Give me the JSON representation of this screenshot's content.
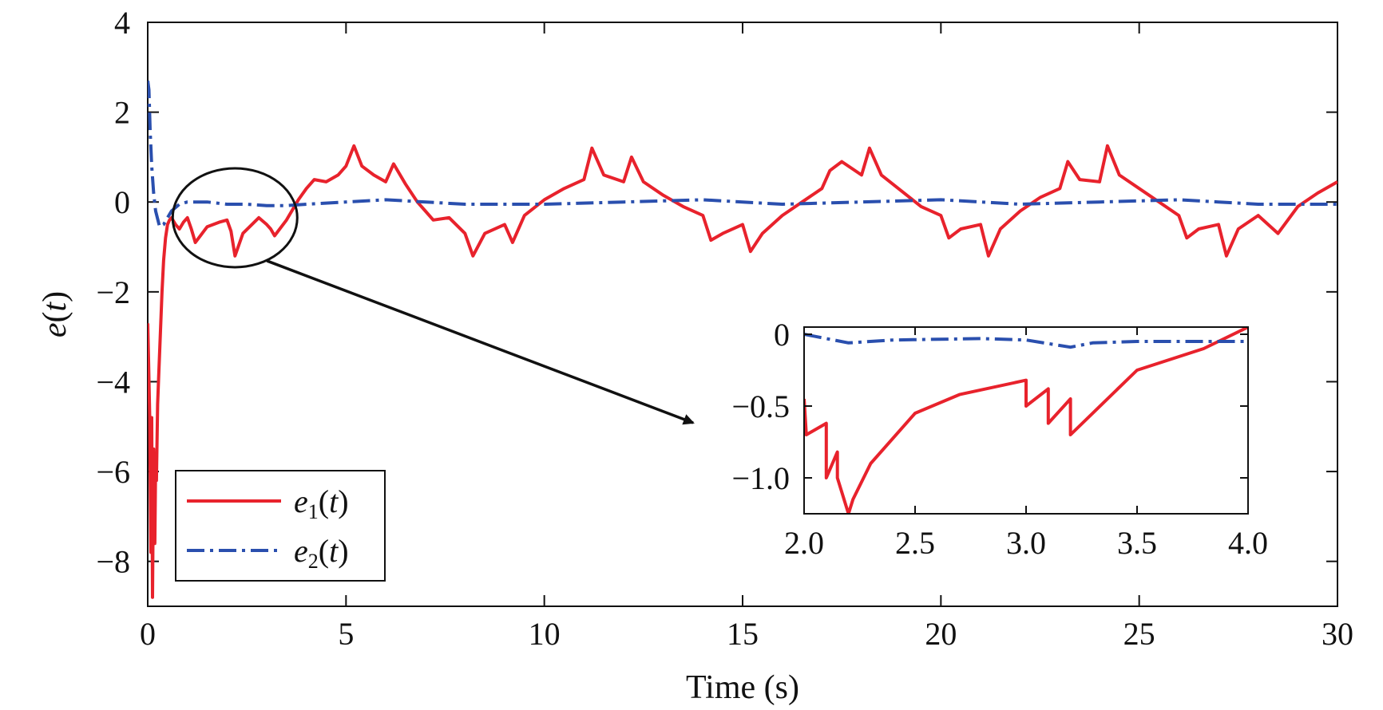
{
  "chart_data": {
    "type": "line",
    "xlabel": "Time (s)",
    "ylabel_var": "e",
    "ylabel_arg": "t",
    "xlim": [
      0,
      30
    ],
    "ylim": [
      -9,
      4
    ],
    "xticks": [
      0,
      5,
      10,
      15,
      20,
      25,
      30
    ],
    "xtick_labels": [
      "0",
      "5",
      "10",
      "15",
      "20",
      "25",
      "30"
    ],
    "yticks": [
      4,
      2,
      0,
      -2,
      -4,
      -6,
      -8
    ],
    "ytick_labels": [
      "4",
      "2",
      "0",
      "−2",
      "−4",
      "−6",
      "−8"
    ],
    "grid": false,
    "legend_position": "bottom-left",
    "series": [
      {
        "name": "e1(t)",
        "legend_var": "e",
        "legend_sub": "1",
        "legend_arg": "t",
        "color": "#e8222c",
        "style": "solid",
        "x": [
          0.0,
          0.02,
          0.05,
          0.08,
          0.1,
          0.12,
          0.15,
          0.18,
          0.2,
          0.22,
          0.25,
          0.28,
          0.32,
          0.36,
          0.4,
          0.45,
          0.5,
          0.55,
          0.6,
          0.7,
          0.8,
          0.9,
          1.0,
          1.1,
          1.2,
          1.5,
          1.8,
          2.0,
          2.1,
          2.2,
          2.4,
          2.8,
          3.0,
          3.1,
          3.2,
          3.5,
          3.8,
          4.0,
          4.2,
          4.5,
          4.8,
          5.0,
          5.2,
          5.4,
          5.7,
          6.0,
          6.2,
          6.5,
          6.8,
          7.0,
          7.2,
          7.6,
          8.0,
          8.2,
          8.5,
          9.0,
          9.2,
          9.5,
          10.0,
          10.5,
          11.0,
          11.2,
          11.5,
          12.0,
          12.2,
          12.5,
          13.0,
          13.5,
          14.0,
          14.2,
          14.5,
          15.0,
          15.2,
          15.5,
          16.0,
          16.5,
          17.0,
          17.2,
          17.5,
          18.0,
          18.2,
          18.5,
          19.0,
          19.5,
          20.0,
          20.2,
          20.5,
          21.0,
          21.2,
          21.5,
          22.0,
          22.5,
          23.0,
          23.2,
          23.5,
          24.0,
          24.2,
          24.5,
          25.0,
          25.5,
          26.0,
          26.2,
          26.5,
          27.0,
          27.2,
          27.5,
          28.0,
          28.5,
          29.0,
          29.5,
          30.0
        ],
        "y": [
          -2.7,
          -3.5,
          -4.8,
          -7.8,
          -4.8,
          -8.8,
          -5.5,
          -7.6,
          -5.8,
          -6.2,
          -4.5,
          -3.8,
          -2.9,
          -2.0,
          -1.3,
          -0.8,
          -0.5,
          -0.4,
          -0.35,
          -0.5,
          -0.6,
          -0.45,
          -0.35,
          -0.6,
          -0.9,
          -0.55,
          -0.45,
          -0.4,
          -0.65,
          -1.2,
          -0.7,
          -0.35,
          -0.5,
          -0.6,
          -0.75,
          -0.4,
          0.05,
          0.3,
          0.5,
          0.45,
          0.6,
          0.8,
          1.25,
          0.8,
          0.6,
          0.45,
          0.85,
          0.4,
          0.0,
          -0.2,
          -0.4,
          -0.35,
          -0.7,
          -1.2,
          -0.7,
          -0.5,
          -0.9,
          -0.3,
          0.05,
          0.3,
          0.5,
          1.2,
          0.6,
          0.45,
          1.0,
          0.45,
          0.15,
          -0.1,
          -0.3,
          -0.85,
          -0.7,
          -0.5,
          -1.1,
          -0.7,
          -0.3,
          0.0,
          0.3,
          0.7,
          0.9,
          0.6,
          1.2,
          0.6,
          0.25,
          -0.1,
          -0.3,
          -0.8,
          -0.6,
          -0.5,
          -1.2,
          -0.6,
          -0.2,
          0.1,
          0.3,
          0.9,
          0.5,
          0.45,
          1.25,
          0.6,
          0.3,
          0.0,
          -0.3,
          -0.8,
          -0.6,
          -0.5,
          -1.2,
          -0.6,
          -0.3,
          -0.7,
          -0.1,
          0.2,
          0.45
        ]
      },
      {
        "name": "e2(t)",
        "legend_var": "e",
        "legend_sub": "2",
        "legend_arg": "t",
        "color": "#2a4fae",
        "style": "dashdot",
        "x": [
          0.0,
          0.03,
          0.06,
          0.1,
          0.15,
          0.2,
          0.3,
          0.4,
          0.5,
          0.6,
          0.8,
          1.0,
          1.5,
          2.0,
          2.5,
          3.0,
          3.5,
          4.0,
          6.0,
          8.0,
          10.0,
          12.0,
          14.0,
          16.0,
          18.0,
          20.0,
          22.0,
          24.0,
          26.0,
          28.0,
          30.0
        ],
        "y": [
          2.7,
          2.5,
          1.6,
          0.8,
          0.2,
          -0.2,
          -0.55,
          -0.5,
          -0.35,
          -0.2,
          -0.05,
          0.0,
          0.0,
          -0.05,
          -0.05,
          -0.08,
          -0.08,
          -0.05,
          0.05,
          -0.05,
          -0.05,
          0.0,
          0.05,
          -0.05,
          0.0,
          0.05,
          -0.05,
          0.0,
          0.05,
          -0.05,
          -0.05
        ]
      }
    ],
    "inset": {
      "xlim": [
        2.0,
        4.0
      ],
      "ylim": [
        -1.25,
        0.05
      ],
      "xticks": [
        2.0,
        2.5,
        3.0,
        3.5,
        4.0
      ],
      "xtick_labels": [
        "2.0",
        "2.5",
        "3.0",
        "3.5",
        "4.0"
      ],
      "yticks": [
        0,
        -0.5,
        -1.0
      ],
      "ytick_labels": [
        "0",
        "−0.5",
        "−1.0"
      ],
      "series": [
        {
          "name": "e1(t)",
          "x": [
            2.0,
            2.01,
            2.1,
            2.1,
            2.15,
            2.15,
            2.2,
            2.22,
            2.3,
            2.5,
            2.7,
            3.0,
            3.0,
            3.1,
            3.1,
            3.2,
            3.2,
            3.5,
            3.8,
            4.0
          ],
          "y": [
            -0.45,
            -0.7,
            -0.62,
            -1.0,
            -0.82,
            -1.0,
            -1.25,
            -1.15,
            -0.9,
            -0.55,
            -0.42,
            -0.32,
            -0.5,
            -0.38,
            -0.62,
            -0.45,
            -0.7,
            -0.25,
            -0.1,
            0.05
          ]
        },
        {
          "name": "e2(t)",
          "x": [
            2.0,
            2.1,
            2.2,
            2.4,
            2.8,
            3.0,
            3.2,
            3.3,
            3.5,
            4.0
          ],
          "y": [
            0.0,
            -0.03,
            -0.06,
            -0.04,
            -0.03,
            -0.04,
            -0.09,
            -0.06,
            -0.05,
            -0.05
          ]
        }
      ],
      "highlight_region": {
        "x_center": 2.2,
        "y_center": -0.35
      }
    }
  }
}
